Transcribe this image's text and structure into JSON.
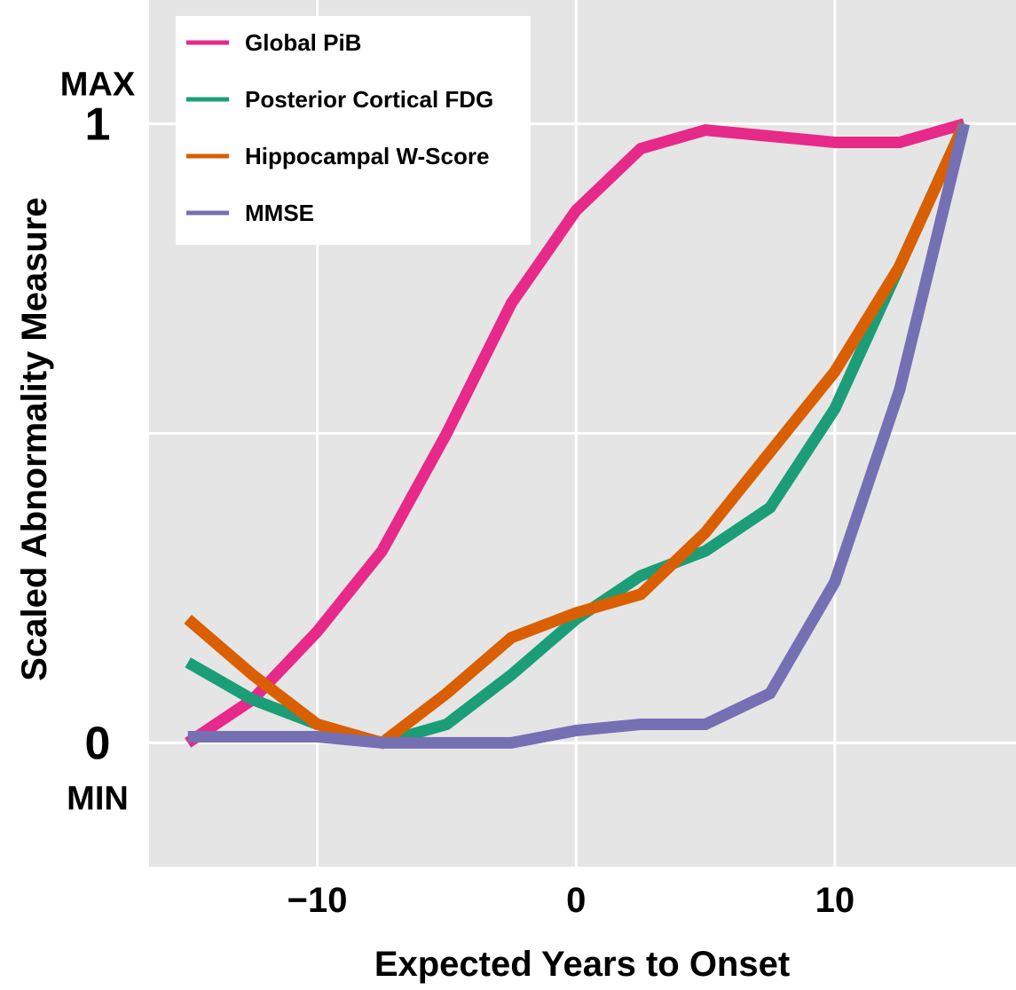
{
  "chart_data": {
    "type": "line",
    "xlabel": "Expected Years to Onset",
    "ylabel": "Scaled Abnormality Measure",
    "xlim": [
      -16.5,
      17
    ],
    "ylim": [
      -0.2,
      1.2
    ],
    "x_ticks": [
      {
        "value": -10,
        "label": "−10"
      },
      {
        "value": 0,
        "label": "0"
      },
      {
        "value": 10,
        "label": "10"
      }
    ],
    "y_ticks": [
      {
        "value": 0,
        "label": "0",
        "sublabel": "MIN"
      },
      {
        "value": 1,
        "label": "1",
        "sublabel": "MAX"
      }
    ],
    "y_gridlines": [
      0,
      0.5,
      1
    ],
    "x_gridlines": [
      -10,
      0,
      10
    ],
    "grid": true,
    "legend_position": "top-left",
    "x": [
      -15,
      -12.5,
      -10,
      -7.5,
      -5,
      -2.5,
      0,
      2.5,
      5,
      7.5,
      10,
      12.5,
      15
    ],
    "series": [
      {
        "name": "Global PiB",
        "color": "#e7298a",
        "values": [
          0.0,
          0.07,
          0.18,
          0.31,
          0.5,
          0.71,
          0.86,
          0.96,
          0.99,
          0.98,
          0.97,
          0.97,
          1.0
        ]
      },
      {
        "name": "Posterior Cortical FDG",
        "color": "#1b9e77",
        "values": [
          0.13,
          0.07,
          0.03,
          0.0,
          0.03,
          0.11,
          0.2,
          0.27,
          0.31,
          0.38,
          0.54,
          0.77,
          1.0
        ]
      },
      {
        "name": "Hippocampal W-Score",
        "color": "#d95f02",
        "values": [
          0.2,
          0.11,
          0.03,
          0.0,
          0.08,
          0.17,
          0.21,
          0.24,
          0.34,
          0.47,
          0.6,
          0.77,
          1.0
        ]
      },
      {
        "name": "MMSE",
        "color": "#7570b3",
        "values": [
          0.01,
          0.01,
          0.01,
          0.0,
          0.0,
          0.0,
          0.02,
          0.03,
          0.03,
          0.08,
          0.26,
          0.57,
          1.0
        ]
      }
    ]
  }
}
